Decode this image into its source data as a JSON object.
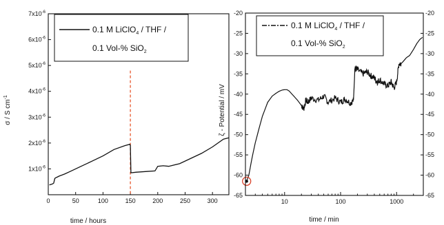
{
  "chart_data": [
    {
      "type": "line",
      "xlabel": "time / hours",
      "ylabel": "σ / S cm",
      "ylabel_exp": "-1",
      "xlim": [
        0,
        330
      ],
      "ylim": [
        0,
        7e-06
      ],
      "x_ticks": [
        "0",
        "50",
        "100",
        "150",
        "200",
        "250",
        "300"
      ],
      "y_ticks": [
        {
          "mant": "1x10",
          "exp": "-6",
          "value": 1e-06
        },
        {
          "mant": "2x10",
          "exp": "-6",
          "value": 2e-06
        },
        {
          "mant": "3x10",
          "exp": "-6",
          "value": 3e-06
        },
        {
          "mant": "4x10",
          "exp": "-6",
          "value": 4e-06
        },
        {
          "mant": "5x10",
          "exp": "-6",
          "value": 5e-06
        },
        {
          "mant": "6x10",
          "exp": "-6",
          "value": 6e-06
        },
        {
          "mant": "7x10",
          "exp": "-6",
          "value": 7e-06
        }
      ],
      "legend": {
        "line1_pre": "0.1 M LiClO",
        "line1_sub": "4",
        "line1_post": " / THF /",
        "line2_pre": "0.1 Vol-% SiO",
        "line2_sub": "2",
        "placement": "top-right"
      },
      "vline_x": 150,
      "vline_color": "#e8552a",
      "series": [
        {
          "x": [
            2,
            5,
            8,
            10,
            12,
            14,
            16,
            20,
            30,
            40,
            60,
            80,
            100,
            120,
            140,
            149,
            150,
            151,
            160,
            180,
            195,
            200,
            210,
            220,
            240,
            260,
            280,
            300,
            320,
            330
          ],
          "y": [
            3.8e-07,
            4e-07,
            4.2e-07,
            4.5e-07,
            6.3e-07,
            6.6e-07,
            6.8e-07,
            7.2e-07,
            8e-07,
            9e-07,
            1.1e-06,
            1.3e-06,
            1.5e-06,
            1.75e-06,
            1.9e-06,
            1.95e-06,
            1.9e-06,
            8.5e-07,
            8.7e-07,
            9e-07,
            9.2e-07,
            1.1e-06,
            1.12e-06,
            1.1e-06,
            1.2e-06,
            1.4e-06,
            1.6e-06,
            1.85e-06,
            2.15e-06,
            2.2e-06
          ]
        }
      ]
    },
    {
      "type": "line",
      "xlabel": "time / min",
      "ylabel": "ζ - Potential / mV",
      "xscale": "log",
      "xlim": [
        2,
        3000
      ],
      "ylim": [
        -65,
        -20
      ],
      "x_ticks": [
        {
          "label": "10",
          "value": 10
        },
        {
          "label": "100",
          "value": 100
        },
        {
          "label": "1000",
          "value": 1000
        }
      ],
      "y_ticks": [
        "-20",
        "-25",
        "-30",
        "-35",
        "-40",
        "-45",
        "-50",
        "-55",
        "-60",
        "-65"
      ],
      "y_ticks_right": [
        "-20",
        "-25",
        "-30",
        "-35",
        "-40",
        "-45",
        "-50",
        "-55",
        "-60",
        "-65"
      ],
      "legend": {
        "line1_pre": "0.1 M LiClO",
        "line1_sub": "4",
        "line1_post": " / THF /",
        "line2_pre": "0.1 Vol-% SiO",
        "line2_sub": "2",
        "placement": "top-left"
      },
      "marker_point": {
        "x": 2.1,
        "y": -61.5,
        "color": "#d9422a"
      },
      "series": [
        {
          "x": [
            2.1,
            2.3,
            2.6,
            3,
            3.5,
            4,
            5,
            6,
            7,
            8,
            9,
            10,
            11,
            12,
            14,
            17,
            20,
            22,
            24,
            26,
            30,
            40,
            50,
            60,
            80,
            100,
            120,
            150,
            170,
            180,
            185,
            200,
            250,
            300,
            350,
            400,
            450,
            500,
            600,
            700,
            800,
            900,
            1000,
            1100,
            1200,
            1300,
            1500,
            1700,
            2000,
            2300,
            2600,
            2900
          ],
          "y": [
            -61.5,
            -60,
            -56,
            -52,
            -48.5,
            -45.5,
            -42,
            -40.5,
            -39.8,
            -39.3,
            -39,
            -38.9,
            -38.9,
            -39.2,
            -40.2,
            -41.5,
            -42.8,
            -43.6,
            -41.5,
            -42,
            -41,
            -41.5,
            -40.5,
            -42,
            -41,
            -42,
            -41.2,
            -42.2,
            -41.5,
            -34,
            -33.5,
            -34,
            -35,
            -34.5,
            -35.5,
            -36,
            -37,
            -36.5,
            -37.5,
            -38,
            -37,
            -38.5,
            -37,
            -32.5,
            -32.5,
            -32,
            -31,
            -30.5,
            -29,
            -27.5,
            -26.5,
            -26
          ]
        }
      ]
    }
  ]
}
